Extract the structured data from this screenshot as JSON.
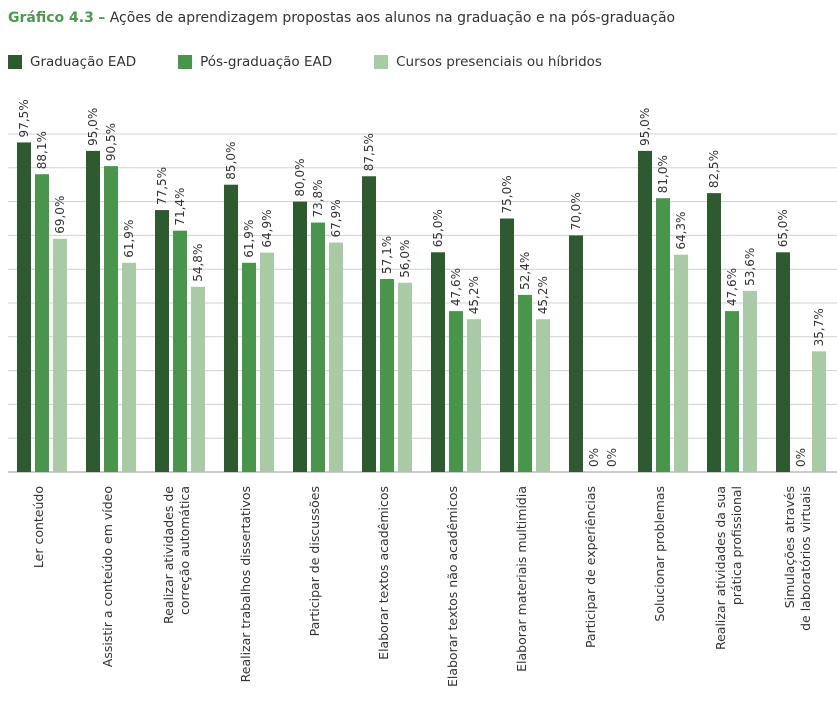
{
  "title": {
    "label": "Gráfico 4.3",
    "separator": "–",
    "text": "Ações de aprendizagem propostas aos alunos na graduação e na pós-graduação"
  },
  "colors": {
    "series": [
      "#2d5a2e",
      "#4a954c",
      "#a8cba5"
    ],
    "grid": "#d0d0d0",
    "axis": "#999999",
    "text": "#333333"
  },
  "chart_data": {
    "type": "bar",
    "ylim": [
      0,
      100
    ],
    "grid": true,
    "legend_position": "top-left",
    "categories": [
      "Ler conteúdo",
      "Assistir a conteúdo em vídeo",
      "Realizar atividades de correção automática",
      "Realizar trabalhos dissertativos",
      "Participar de discussões",
      "Elaborar textos acadêmicos",
      "Elaborar textos não acadêmicos",
      "Elaborar materiais multimídia",
      "Participar de experiências",
      "Solucionar problemas",
      "Realizar atividades da sua prática profissional",
      "Simulações através de laboratórios virtuais"
    ],
    "category_lines": [
      [
        "Ler conteúdo"
      ],
      [
        "Assistir a conteúdo em vídeo"
      ],
      [
        "Realizar atividades de",
        "correção automática"
      ],
      [
        "Realizar trabalhos dissertativos"
      ],
      [
        "Participar de discussões"
      ],
      [
        "Elaborar textos acadêmicos"
      ],
      [
        "Elaborar textos não acadêmicos"
      ],
      [
        "Elaborar materiais multimídia"
      ],
      [
        "Participar de experiências"
      ],
      [
        "Solucionar problemas"
      ],
      [
        "Realizar atividades da sua",
        "prática profissional"
      ],
      [
        "Simulações através",
        "de laboratórios virtuais"
      ]
    ],
    "series": [
      {
        "name": "Graduação EAD",
        "values": [
          97.5,
          95.0,
          77.5,
          85.0,
          80.0,
          87.5,
          65.0,
          75.0,
          70.0,
          95.0,
          82.5,
          65.0
        ],
        "labels": [
          "97,5%",
          "95,0%",
          "77,5%",
          "85,0%",
          "80,0%",
          "87,5%",
          "65,0%",
          "75,0%",
          "70,0%",
          "95,0%",
          "82,5%",
          "65,0%"
        ]
      },
      {
        "name": "Pós-graduação EAD",
        "values": [
          88.1,
          90.5,
          71.4,
          61.9,
          73.8,
          57.1,
          47.6,
          52.4,
          0,
          81.0,
          47.6,
          0
        ],
        "labels": [
          "88,1%",
          "90,5%",
          "71,4%",
          "61,9%",
          "73,8%",
          "57,1%",
          "47,6%",
          "52,4%",
          "0%",
          "81,0%",
          "47,6%",
          "0%"
        ]
      },
      {
        "name": "Cursos presenciais ou híbridos",
        "values": [
          69.0,
          61.9,
          54.8,
          64.9,
          67.9,
          56.0,
          45.2,
          45.2,
          0,
          64.3,
          53.6,
          35.7
        ],
        "labels": [
          "69,0%",
          "61,9%",
          "54,8%",
          "64,9%",
          "67,9%",
          "56,0%",
          "45,2%",
          "45,2%",
          "0%",
          "64,3%",
          "53,6%",
          "35,7%"
        ]
      }
    ]
  }
}
